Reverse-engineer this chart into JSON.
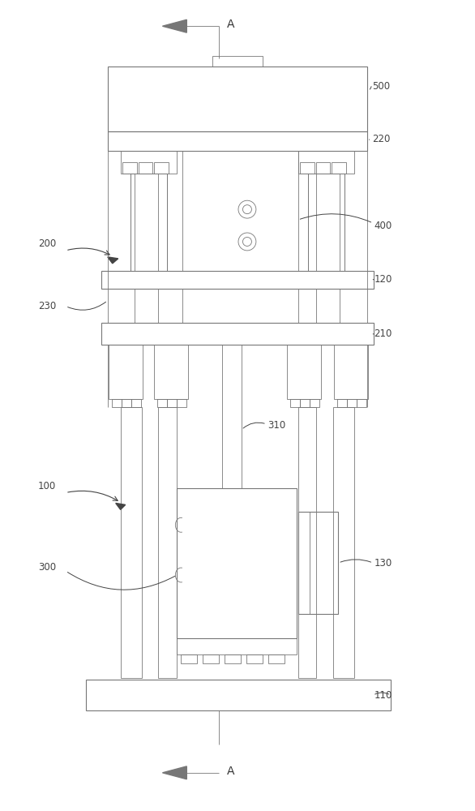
{
  "bg_color": "#ffffff",
  "lc": "#777777",
  "lw": 0.8,
  "tlw": 0.6,
  "fig_w": 5.86,
  "fig_h": 10.0,
  "label_color": "#444444",
  "label_fs": 8.5
}
